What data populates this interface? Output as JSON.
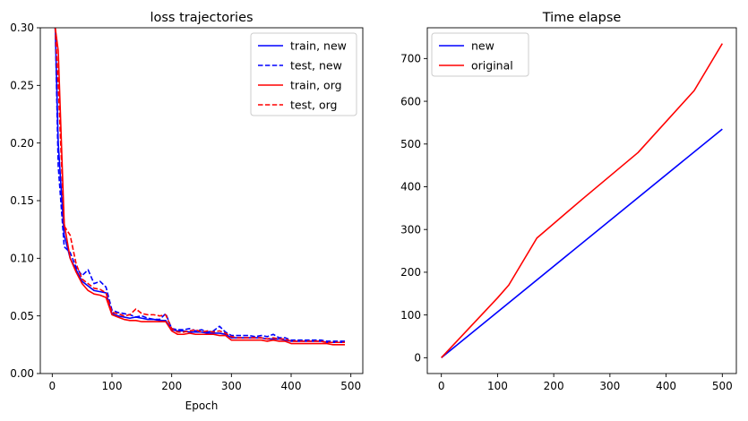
{
  "chart_data": [
    {
      "type": "line",
      "title": "loss trajectories",
      "xlabel": "Epoch",
      "ylabel": "",
      "xlim": [
        -20,
        520
      ],
      "ylim": [
        0,
        0.3
      ],
      "xticks": [
        0,
        100,
        200,
        300,
        400,
        500
      ],
      "yticks": [
        0.0,
        0.05,
        0.1,
        0.15,
        0.2,
        0.25,
        0.3
      ],
      "ytick_labels": [
        "0.00",
        "0.05",
        "0.10",
        "0.15",
        "0.20",
        "0.25",
        "0.30"
      ],
      "legend_position": "upper-right",
      "series": [
        {
          "name": "train, new",
          "color": "#0000ff",
          "style": "solid",
          "x": [
            5,
            10,
            20,
            30,
            40,
            50,
            60,
            70,
            80,
            90,
            100,
            110,
            120,
            130,
            140,
            150,
            160,
            170,
            180,
            190,
            200,
            210,
            220,
            230,
            240,
            250,
            260,
            270,
            280,
            290,
            300,
            310,
            320,
            330,
            340,
            350,
            360,
            370,
            380,
            390,
            400,
            410,
            420,
            430,
            440,
            450,
            460,
            470,
            480,
            490
          ],
          "y": [
            0.3,
            0.2,
            0.12,
            0.1,
            0.09,
            0.08,
            0.076,
            0.072,
            0.071,
            0.07,
            0.052,
            0.05,
            0.049,
            0.048,
            0.049,
            0.048,
            0.047,
            0.047,
            0.046,
            0.046,
            0.038,
            0.037,
            0.037,
            0.036,
            0.036,
            0.036,
            0.035,
            0.035,
            0.035,
            0.034,
            0.031,
            0.031,
            0.031,
            0.031,
            0.031,
            0.031,
            0.03,
            0.03,
            0.03,
            0.029,
            0.028,
            0.028,
            0.028,
            0.028,
            0.028,
            0.028,
            0.027,
            0.027,
            0.027,
            0.027
          ]
        },
        {
          "name": "test, new",
          "color": "#0000ff",
          "style": "dashed",
          "x": [
            5,
            10,
            20,
            30,
            40,
            50,
            60,
            70,
            80,
            90,
            100,
            110,
            120,
            130,
            140,
            150,
            160,
            170,
            180,
            190,
            200,
            210,
            220,
            230,
            240,
            250,
            260,
            270,
            280,
            290,
            300,
            310,
            320,
            330,
            340,
            350,
            360,
            370,
            380,
            390,
            400,
            410,
            420,
            430,
            440,
            450,
            460,
            470,
            480,
            490
          ],
          "y": [
            0.3,
            0.18,
            0.11,
            0.105,
            0.092,
            0.085,
            0.09,
            0.078,
            0.08,
            0.075,
            0.055,
            0.053,
            0.052,
            0.051,
            0.049,
            0.05,
            0.048,
            0.047,
            0.047,
            0.052,
            0.039,
            0.038,
            0.038,
            0.039,
            0.037,
            0.038,
            0.036,
            0.037,
            0.041,
            0.036,
            0.033,
            0.033,
            0.033,
            0.033,
            0.032,
            0.033,
            0.032,
            0.034,
            0.031,
            0.031,
            0.029,
            0.029,
            0.029,
            0.029,
            0.029,
            0.029,
            0.028,
            0.028,
            0.028,
            0.028
          ]
        },
        {
          "name": "train, org",
          "color": "#ff0000",
          "style": "solid",
          "x": [
            5,
            10,
            20,
            30,
            40,
            50,
            60,
            70,
            80,
            90,
            100,
            110,
            120,
            130,
            140,
            150,
            160,
            170,
            180,
            190,
            200,
            210,
            220,
            230,
            240,
            250,
            260,
            270,
            280,
            290,
            300,
            310,
            320,
            330,
            340,
            350,
            360,
            370,
            380,
            390,
            400,
            410,
            420,
            430,
            440,
            450,
            460,
            470,
            480,
            490
          ],
          "y": [
            0.3,
            0.28,
            0.13,
            0.1,
            0.088,
            0.078,
            0.072,
            0.069,
            0.068,
            0.066,
            0.051,
            0.049,
            0.047,
            0.046,
            0.046,
            0.045,
            0.045,
            0.045,
            0.045,
            0.045,
            0.037,
            0.034,
            0.034,
            0.035,
            0.034,
            0.034,
            0.034,
            0.034,
            0.033,
            0.033,
            0.029,
            0.029,
            0.029,
            0.029,
            0.029,
            0.029,
            0.028,
            0.029,
            0.028,
            0.028,
            0.026,
            0.026,
            0.026,
            0.026,
            0.026,
            0.026,
            0.026,
            0.025,
            0.025,
            0.025
          ]
        },
        {
          "name": "test, org",
          "color": "#ff0000",
          "style": "dashed",
          "x": [
            5,
            10,
            20,
            30,
            40,
            50,
            60,
            70,
            80,
            90,
            100,
            110,
            120,
            130,
            140,
            150,
            160,
            170,
            180,
            190,
            200,
            210,
            220,
            230,
            240,
            250,
            260,
            270,
            280,
            290,
            300,
            310,
            320,
            330,
            340,
            350,
            360,
            370,
            380,
            390,
            400,
            410,
            420,
            430,
            440,
            450,
            460,
            470,
            480,
            490
          ],
          "y": [
            0.3,
            0.25,
            0.128,
            0.12,
            0.095,
            0.082,
            0.078,
            0.074,
            0.073,
            0.07,
            0.053,
            0.052,
            0.05,
            0.051,
            0.056,
            0.052,
            0.051,
            0.051,
            0.05,
            0.051,
            0.039,
            0.036,
            0.036,
            0.037,
            0.038,
            0.036,
            0.037,
            0.036,
            0.037,
            0.035,
            0.032,
            0.031,
            0.031,
            0.031,
            0.031,
            0.031,
            0.03,
            0.031,
            0.03,
            0.03,
            0.028,
            0.028,
            0.028,
            0.028,
            0.028,
            0.028,
            0.027,
            0.027,
            0.027,
            0.027
          ]
        }
      ]
    },
    {
      "type": "line",
      "title": "Time elapse",
      "xlabel": "",
      "ylabel": "",
      "xlim": [
        -25,
        525
      ],
      "ylim": [
        -37,
        772
      ],
      "xticks": [
        0,
        100,
        200,
        300,
        400,
        500
      ],
      "yticks": [
        0,
        100,
        200,
        300,
        400,
        500,
        600,
        700
      ],
      "legend_position": "upper-left",
      "series": [
        {
          "name": "new",
          "color": "#0000ff",
          "style": "solid",
          "x": [
            0,
            500
          ],
          "y": [
            0,
            535
          ]
        },
        {
          "name": "original",
          "color": "#ff0000",
          "style": "solid",
          "x": [
            0,
            50,
            100,
            120,
            170,
            250,
            350,
            450,
            500
          ],
          "y": [
            0,
            70,
            140,
            170,
            280,
            370,
            480,
            625,
            735
          ]
        }
      ]
    }
  ]
}
